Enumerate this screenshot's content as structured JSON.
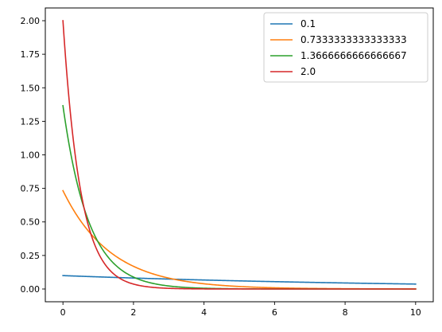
{
  "chart_data": {
    "type": "line",
    "title": "",
    "xlabel": "",
    "ylabel": "",
    "xlim": [
      -0.5,
      10.5
    ],
    "ylim": [
      -0.095,
      2.095
    ],
    "xticks": [
      0,
      2,
      4,
      6,
      8,
      10
    ],
    "xtick_labels": [
      "0",
      "2",
      "4",
      "6",
      "8",
      "10"
    ],
    "yticks": [
      0.0,
      0.25,
      0.5,
      0.75,
      1.0,
      1.25,
      1.5,
      1.75,
      2.0
    ],
    "ytick_labels": [
      "0.00",
      "0.25",
      "0.50",
      "0.75",
      "1.00",
      "1.25",
      "1.50",
      "1.75",
      "2.00"
    ],
    "grid": false,
    "legend_position": "top-right",
    "function": "y = lambda * exp(-lambda * x)",
    "x_range": [
      0,
      10
    ],
    "series": [
      {
        "name": "0.1",
        "lambda": 0.1,
        "color": "#1f77b4"
      },
      {
        "name": "0.7333333333333333",
        "lambda": 0.7333333333333333,
        "color": "#ff7f0e"
      },
      {
        "name": "1.3666666666666667",
        "lambda": 1.3666666666666667,
        "color": "#2ca02c"
      },
      {
        "name": "2.0",
        "lambda": 2.0,
        "color": "#d62728"
      }
    ]
  }
}
